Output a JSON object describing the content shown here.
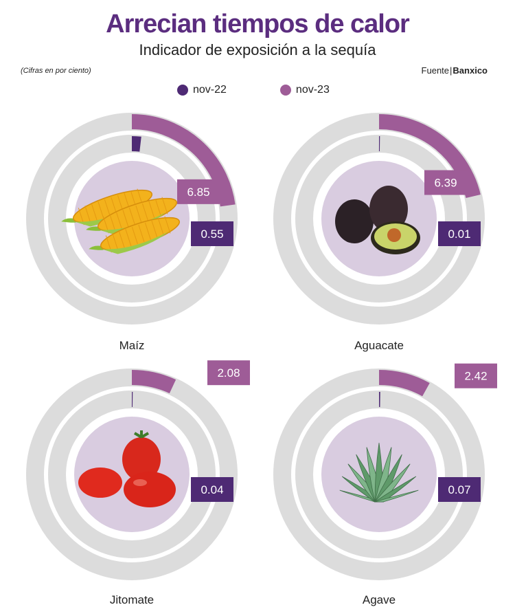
{
  "header": {
    "title": "Arrecian tiempos de calor",
    "subtitle": "Indicador de exposición a la sequía",
    "note": "(Cifras en por ciento)",
    "source_label": "Fuente",
    "source_name": "Banxico"
  },
  "colors": {
    "title": "#5b2d7f",
    "nov22": "#4e2a74",
    "nov23": "#9e5c97",
    "ring": "#dcdcdc",
    "center": "#d9cce0"
  },
  "chart_data": {
    "type": "radial-bar",
    "title": "Arrecian tiempos de calor",
    "subtitle": "Indicador de exposición a la sequía",
    "unit": "por ciento",
    "scale_max": 30,
    "legend": [
      "nov-22",
      "nov-23"
    ],
    "items": [
      {
        "category": "Maíz",
        "icon": "corn-icon",
        "nov22": 0.55,
        "nov23": 6.85,
        "nov22_label": "0.55",
        "nov23_label": "6.85"
      },
      {
        "category": "Aguacate",
        "icon": "avocado-icon",
        "nov22": 0.01,
        "nov23": 6.39,
        "nov22_label": "0.01",
        "nov23_label": "6.39"
      },
      {
        "category": "Jitomate",
        "icon": "tomato-icon",
        "nov22": 0.04,
        "nov23": 2.08,
        "nov22_label": "0.04",
        "nov23_label": "2.08"
      },
      {
        "category": "Agave",
        "icon": "agave-icon",
        "nov22": 0.07,
        "nov23": 2.42,
        "nov22_label": "0.07",
        "nov23_label": "2.42"
      }
    ]
  }
}
